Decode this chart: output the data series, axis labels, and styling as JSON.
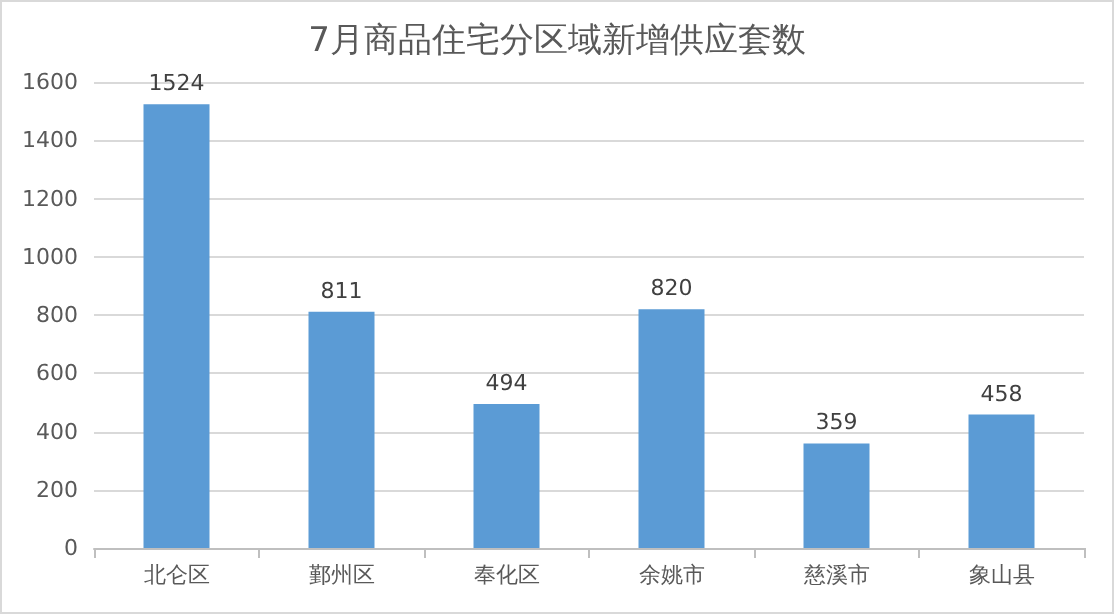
{
  "chart_data": {
    "type": "bar",
    "title": "7月商品住宅分区域新增供应套数",
    "categories": [
      "北仑区",
      "鄞州区",
      "奉化区",
      "余姚市",
      "慈溪市",
      "象山县"
    ],
    "values": [
      1524,
      811,
      494,
      820,
      359,
      458
    ],
    "color": "#5b9bd5",
    "ylim": [
      0,
      1600
    ],
    "yticks": [
      0,
      200,
      400,
      600,
      800,
      1000,
      1200,
      1400,
      1600
    ],
    "grid": "y",
    "data_labels": true
  }
}
